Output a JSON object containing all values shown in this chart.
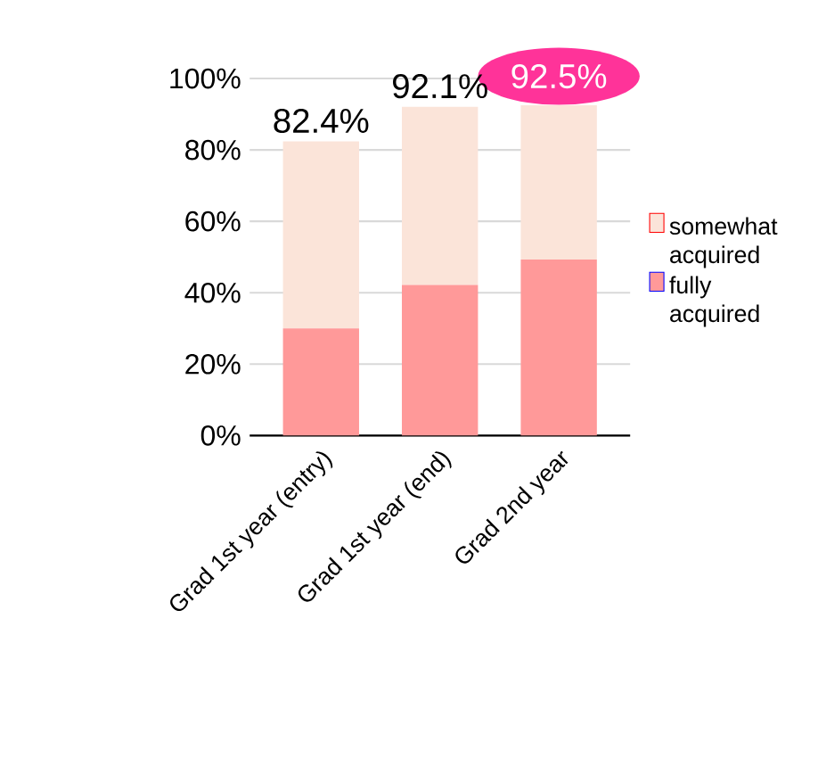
{
  "chart_data": {
    "type": "bar",
    "stacked": true,
    "categories": [
      "Grad 1st year (entry)",
      "Grad 1st year (end)",
      "Grad 2nd year"
    ],
    "series": [
      {
        "name": "fully acquired",
        "color": "#ff9999",
        "values": [
          30,
          42.2,
          49.3
        ]
      },
      {
        "name": "somewhat acquired",
        "color": "#fbe4d9",
        "values": [
          52.4,
          49.9,
          43.2
        ]
      }
    ],
    "totals": [
      "82.4%",
      "92.1%",
      "92.5%"
    ],
    "ylim": [
      0,
      100
    ],
    "yticks": [
      {
        "value": 0,
        "label": "0%"
      },
      {
        "value": 20,
        "label": "20%"
      },
      {
        "value": 40,
        "label": "40%"
      },
      {
        "value": 60,
        "label": "60%"
      },
      {
        "value": 80,
        "label": "80%"
      },
      {
        "value": 100,
        "label": "100%"
      }
    ],
    "grid": "y",
    "legend": "right"
  }
}
